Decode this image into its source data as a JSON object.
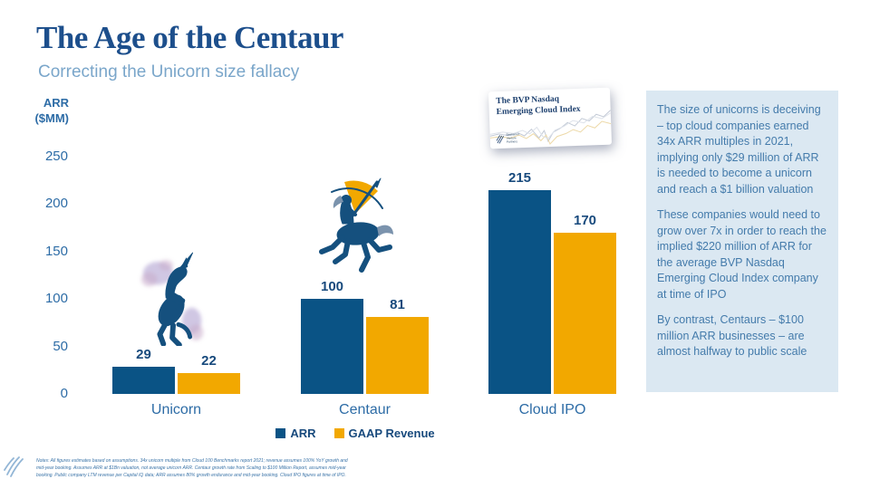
{
  "slide": {
    "title": "The Age of the Centaur",
    "subtitle": "Correcting the Unicorn size fallacy",
    "notes": "Notes: All figures estimates based on assumptions. 34x unicorn multiple from Cloud 100 Benchmarks report 2021; revenue assumes 100% YoY growth and mid-year booking. Assumes ARR at $1Bn valuation, not average unicorn ARR. Centaur growth rate from Scaling to $100 Million Report, assumes mid-year booking. Public company LTM revenue per Capital IQ data; ARR assumes 80% growth endurance and mid-year booking. Cloud IPO figures at time of IPO."
  },
  "axis": {
    "line1": "ARR",
    "line2": "($MM)"
  },
  "chart_data": {
    "type": "bar",
    "categories": [
      "Unicorn",
      "Centaur",
      "Cloud IPO"
    ],
    "series": [
      {
        "name": "ARR",
        "color": "#0a5385",
        "values": [
          29,
          100,
          215
        ]
      },
      {
        "name": "GAAP Revenue",
        "color": "#f2a800",
        "values": [
          22,
          81,
          170
        ]
      }
    ],
    "title": "",
    "xlabel": "",
    "ylabel": "ARR ($MM)",
    "yticks": [
      0,
      50,
      100,
      150,
      200,
      250
    ],
    "ylim": [
      0,
      250
    ],
    "grid": false,
    "legend_position": "bottom"
  },
  "card": {
    "title": "The BVP Nasdaq Emerging Cloud Index",
    "logo_lines": [
      "Bessemer",
      "Venture",
      "Partners"
    ]
  },
  "sidebar": {
    "paragraphs": [
      "The size of unicorns is deceiving – top cloud companies earned 34x ARR multiples in 2021, implying only $29 million of ARR is needed to become a unicorn and reach a $1 billion valuation",
      "These companies would need to grow over 7x in order to reach the implied $220 million of ARR for the average BVP Nasdaq Emerging Cloud Index company at time of IPO",
      "By contrast, Centaurs – $100 million ARR businesses – are almost halfway to public scale"
    ]
  },
  "colors": {
    "navy": "#0a5385",
    "gold": "#f2a800",
    "title_blue": "#1d4f8c",
    "subtitle_blue": "#7aa6ca",
    "axis_blue": "#2d6ca6",
    "label_navy": "#184a7d",
    "panel_bg": "#dbe8f2",
    "panel_text": "#447bab"
  }
}
